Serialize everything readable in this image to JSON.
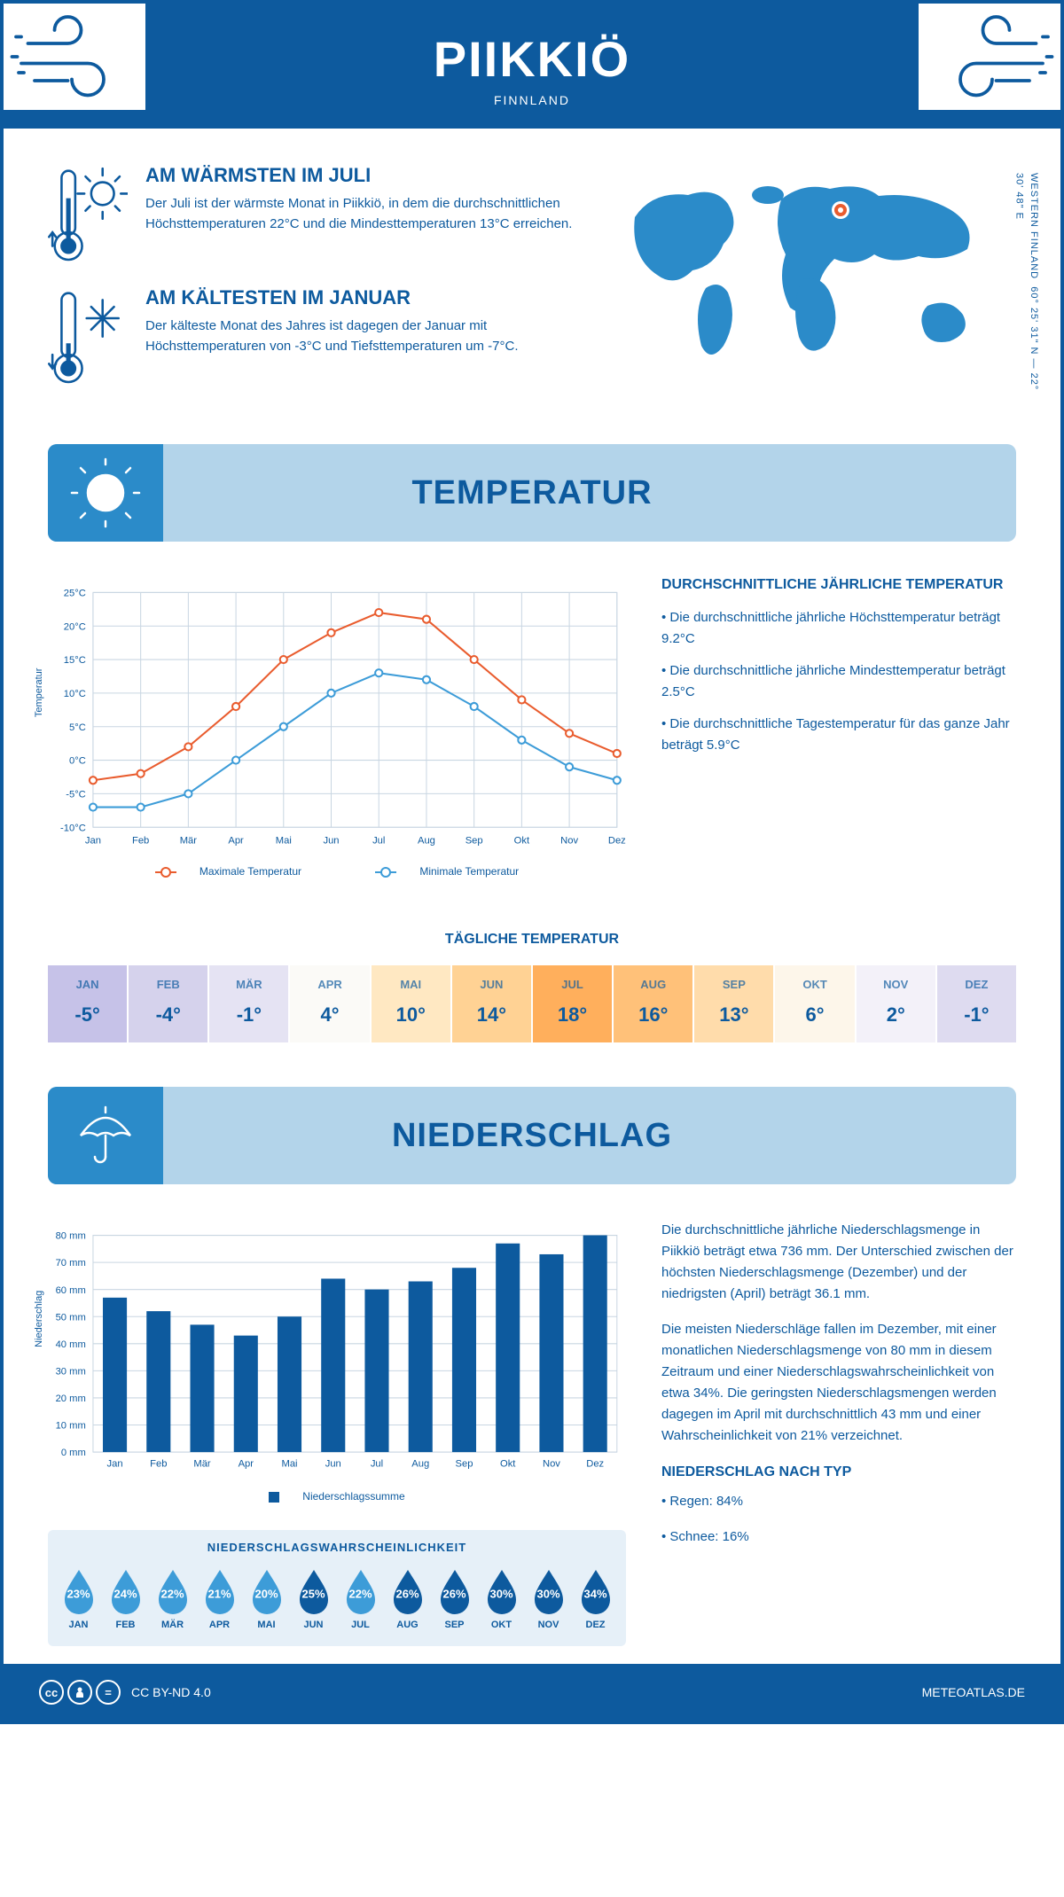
{
  "header": {
    "title": "PIIKKIÖ",
    "subtitle": "FINNLAND"
  },
  "coords": {
    "lat": "60° 25' 31\" N — 22° 30' 48\" E",
    "region": "WESTERN FINLAND"
  },
  "intro": {
    "warm": {
      "title": "AM WÄRMSTEN IM JULI",
      "text": "Der Juli ist der wärmste Monat in Piikkiö, in dem die durchschnittlichen Höchsttemperaturen 22°C und die Mindesttemperaturen 13°C erreichen."
    },
    "cold": {
      "title": "AM KÄLTESTEN IM JANUAR",
      "text": "Der kälteste Monat des Jahres ist dagegen der Januar mit Höchsttemperaturen von -3°C und Tiefsttemperaturen um -7°C."
    }
  },
  "months": [
    "Jan",
    "Feb",
    "Mär",
    "Apr",
    "Mai",
    "Jun",
    "Jul",
    "Aug",
    "Sep",
    "Okt",
    "Nov",
    "Dez"
  ],
  "months_upper": [
    "JAN",
    "FEB",
    "MÄR",
    "APR",
    "MAI",
    "JUN",
    "JUL",
    "AUG",
    "SEP",
    "OKT",
    "NOV",
    "DEZ"
  ],
  "temp_section": {
    "title": "TEMPERATUR",
    "chart": {
      "type": "line",
      "y_label": "Temperatur",
      "ylim": [
        -10,
        25
      ],
      "ytick_step": 5,
      "max_series": {
        "label": "Maximale Temperatur",
        "color": "#e95c2e",
        "values": [
          -3,
          -2,
          2,
          8,
          15,
          19,
          22,
          21,
          15,
          9,
          4,
          1
        ]
      },
      "min_series": {
        "label": "Minimale Temperatur",
        "color": "#3d9cd8",
        "values": [
          -7,
          -7,
          -5,
          0,
          5,
          10,
          13,
          12,
          8,
          3,
          -1,
          -3
        ]
      },
      "grid_color": "#c9d6e2",
      "background": "#ffffff"
    },
    "info": {
      "title": "DURCHSCHNITTLICHE JÄHRLICHE TEMPERATUR",
      "b1": "• Die durchschnittliche jährliche Höchsttemperatur beträgt 9.2°C",
      "b2": "• Die durchschnittliche jährliche Mindesttemperatur beträgt 2.5°C",
      "b3": "• Die durchschnittliche Tagestemperatur für das ganze Jahr beträgt 5.9°C"
    },
    "daily": {
      "title": "TÄGLICHE TEMPERATUR",
      "values": [
        "-5°",
        "-4°",
        "-1°",
        "4°",
        "10°",
        "14°",
        "18°",
        "16°",
        "13°",
        "6°",
        "2°",
        "-1°"
      ],
      "cell_colors": [
        "#c6c2e8",
        "#d5d2ec",
        "#e5e3f3",
        "#fbfaf7",
        "#ffe8c2",
        "#ffd294",
        "#ffaf5c",
        "#ffc179",
        "#ffdcab",
        "#fdf6ea",
        "#f3f1f9",
        "#dedbf0"
      ]
    }
  },
  "precip_section": {
    "title": "NIEDERSCHLAG",
    "chart": {
      "type": "bar",
      "y_label": "Niederschlag",
      "ylim": [
        0,
        80
      ],
      "ytick_step": 10,
      "values": [
        57,
        52,
        47,
        43,
        50,
        64,
        60,
        63,
        68,
        77,
        73,
        80
      ],
      "bar_color": "#0d5a9e",
      "grid_color": "#c9d6e2",
      "legend": "Niederschlagssumme"
    },
    "info": {
      "p1": "Die durchschnittliche jährliche Niederschlagsmenge in Piikkiö beträgt etwa 736 mm. Der Unterschied zwischen der höchsten Niederschlagsmenge (Dezember) und der niedrigsten (April) beträgt 36.1 mm.",
      "p2": "Die meisten Niederschläge fallen im Dezember, mit einer monatlichen Niederschlagsmenge von 80 mm in diesem Zeitraum und einer Niederschlagswahrscheinlichkeit von etwa 34%. Die geringsten Niederschlagsmengen werden dagegen im April mit durchschnittlich 43 mm und einer Wahrscheinlichkeit von 21% verzeichnet.",
      "type_title": "NIEDERSCHLAG NACH TYP",
      "rain": "• Regen: 84%",
      "snow": "• Schnee: 16%"
    },
    "probability": {
      "title": "NIEDERSCHLAGSWAHRSCHEINLICHKEIT",
      "values": [
        23,
        24,
        22,
        21,
        20,
        25,
        22,
        26,
        26,
        30,
        30,
        34
      ],
      "color_light": "#3d9cd8",
      "color_dark": "#0d5a9e",
      "threshold": 25
    }
  },
  "footer": {
    "license": "CC BY-ND 4.0",
    "site": "METEOATLAS.DE"
  }
}
